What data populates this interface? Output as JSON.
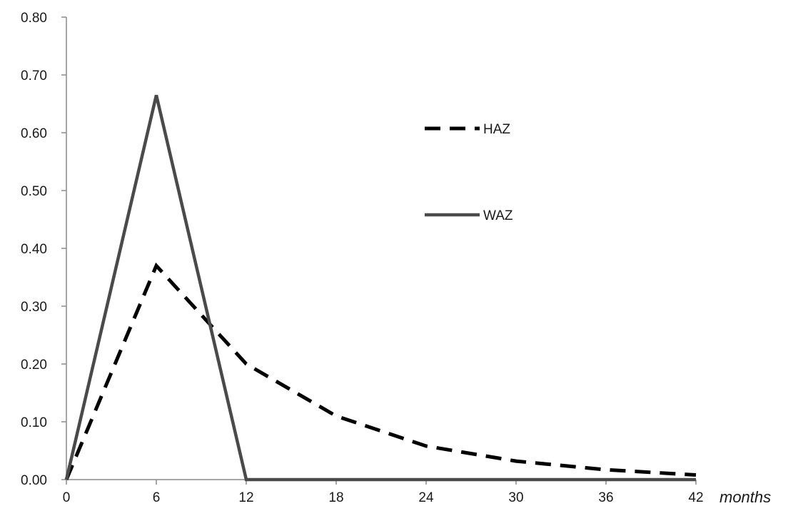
{
  "chart_data": {
    "type": "line",
    "title": "",
    "xlabel": "months",
    "ylabel": "",
    "x": [
      0,
      6,
      12,
      18,
      24,
      30,
      36,
      42
    ],
    "xticks": [
      "0",
      "6",
      "12",
      "18",
      "24",
      "30",
      "36",
      "42"
    ],
    "yticks": [
      "0.00",
      "0.10",
      "0.20",
      "0.30",
      "0.40",
      "0.50",
      "0.60",
      "0.70",
      "0.80"
    ],
    "xlim": [
      0,
      42
    ],
    "ylim": [
      0,
      0.8
    ],
    "grid": false,
    "legend": "inside-upper-center",
    "series": [
      {
        "name": "HAZ",
        "style": "dashed",
        "color": "#000000",
        "values": [
          0.0,
          0.37,
          0.2,
          0.11,
          0.058,
          0.032,
          0.017,
          0.008
        ]
      },
      {
        "name": "WAZ",
        "style": "solid",
        "color": "#4a4a4a",
        "values": [
          0.0,
          0.665,
          0.0,
          0.0,
          0.0,
          0.0,
          0.0,
          0.0
        ]
      }
    ]
  }
}
